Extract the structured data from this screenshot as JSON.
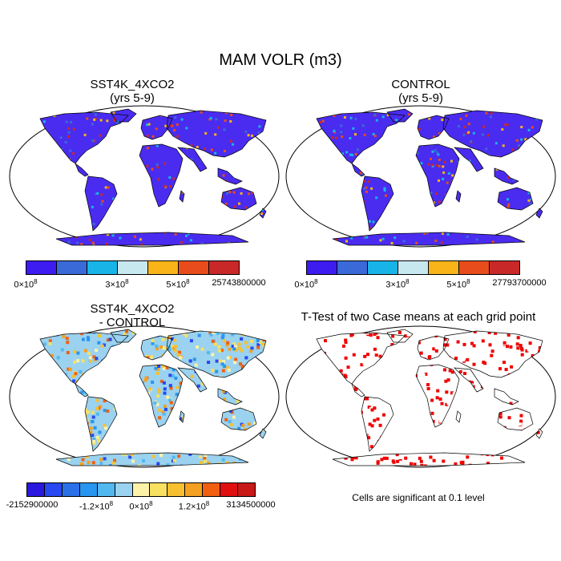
{
  "title": "MAM VOLR (m3)",
  "panels": {
    "top_left": {
      "title_line1": "SST4K_4XCO2",
      "title_line2": "(yrs 5-9)"
    },
    "top_right": {
      "title_line1": "CONTROL",
      "title_line2": "(yrs 5-9)"
    },
    "bottom_left": {
      "title_line1": "SST4K_4XCO2",
      "title_line2": "- CONTROL"
    },
    "bottom_right": {
      "title_line1": "T-Test of two Case means at each grid point"
    }
  },
  "colorbars": {
    "top_left": {
      "colors": [
        "#3c1cf0",
        "#3a6ad8",
        "#18b4e8",
        "#c8e8f0",
        "#f8b418",
        "#e84c1c",
        "#c82828"
      ],
      "labels": {
        "min": "0×10",
        "min_exp": "8",
        "mid1": "3×10",
        "mid1_exp": "8",
        "mid2": "5×10",
        "mid2_exp": "8",
        "max": "25743800000"
      }
    },
    "top_right": {
      "colors": [
        "#3c1cf0",
        "#3a6ad8",
        "#18b4e8",
        "#c8e8f0",
        "#f8b418",
        "#e84c1c",
        "#c82828"
      ],
      "labels": {
        "min": "0×10",
        "min_exp": "8",
        "mid1": "3×10",
        "mid1_exp": "8",
        "mid2": "5×10",
        "mid2_exp": "8",
        "max": "27793700000"
      }
    },
    "bottom_left": {
      "colors": [
        "#2a18e0",
        "#2848f0",
        "#2c70e8",
        "#2896f0",
        "#52b8f0",
        "#9ad2f0",
        "#fdf2a8",
        "#f8e060",
        "#f8c030",
        "#f4a020",
        "#f06010",
        "#e01010",
        "#c81818"
      ],
      "labels": {
        "min": "-2152900000",
        "mid1": "-1.2×10",
        "mid1_exp": "8",
        "mid2": "0×10",
        "mid2_exp": "8",
        "mid3": "1.2×10",
        "mid3_exp": "8",
        "max": "3134500000"
      }
    }
  },
  "note": "Cells are significant at 0.1 level",
  "colors": {
    "ocean": "#ffffff",
    "land_abs": "#4a2cf0",
    "sig": "#f00000"
  }
}
